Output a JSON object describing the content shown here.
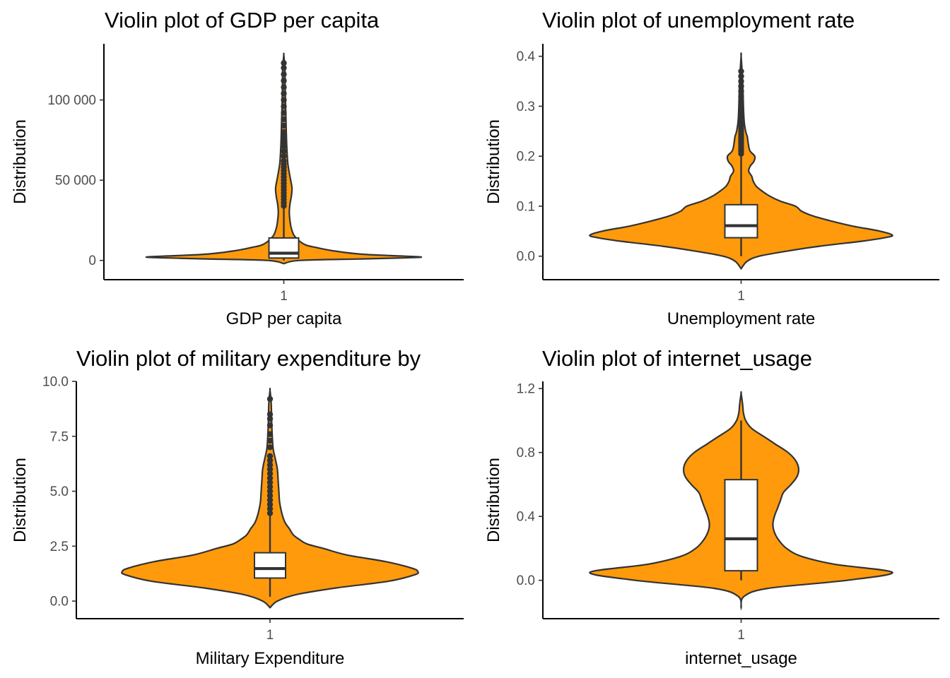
{
  "chart_data": [
    {
      "type": "violin",
      "title": "Violin plot of GDP per capita",
      "xlabel": "GDP per capita",
      "ylabel": "Distribution",
      "categories": [
        "1"
      ],
      "ylim": [
        -12000,
        135000
      ],
      "yticks": [
        0,
        50000,
        100000
      ],
      "ytick_labels": [
        "0",
        "50 000",
        "100 000"
      ],
      "box": {
        "q1": 1500,
        "median": 4500,
        "q3": 14000,
        "whisker_low": 0,
        "whisker_high": 33000
      },
      "density": {
        "y": [
          -2000,
          0,
          1000,
          2000,
          3000,
          4000,
          6000,
          8000,
          10000,
          15000,
          20000,
          25000,
          30000,
          35000,
          40000,
          45000,
          50000,
          60000,
          70000,
          80000,
          90000,
          100000,
          110000,
          120000,
          128000
        ],
        "width": [
          0,
          0.12,
          0.6,
          1.0,
          0.78,
          0.55,
          0.36,
          0.24,
          0.15,
          0.08,
          0.055,
          0.045,
          0.04,
          0.045,
          0.055,
          0.06,
          0.05,
          0.03,
          0.022,
          0.018,
          0.015,
          0.012,
          0.01,
          0.008,
          0
        ]
      },
      "outliers": [
        34000,
        36000,
        38000,
        40000,
        42000,
        44000,
        46000,
        48000,
        50000,
        52000,
        54000,
        56000,
        58000,
        60000,
        62000,
        65000,
        68000,
        71000,
        74000,
        77000,
        80000,
        84000,
        88000,
        92000,
        96000,
        100000,
        104000,
        108000,
        112000,
        116000,
        120000,
        123000
      ]
    },
    {
      "type": "violin",
      "title": "Violin plot of unemployment rate",
      "xlabel": "Unemployment rate",
      "ylabel": "Distribution",
      "categories": [
        "1"
      ],
      "ylim": [
        -0.047,
        0.425
      ],
      "yticks": [
        0.0,
        0.1,
        0.2,
        0.3,
        0.4
      ],
      "ytick_labels": [
        "0.0",
        "0.1",
        "0.2",
        "0.3",
        "0.4"
      ],
      "box": {
        "q1": 0.037,
        "median": 0.061,
        "q3": 0.103,
        "whisker_low": 0.0,
        "whisker_high": 0.2
      },
      "density": {
        "y": [
          -0.025,
          -0.01,
          0.0,
          0.01,
          0.02,
          0.03,
          0.037,
          0.042,
          0.05,
          0.06,
          0.07,
          0.08,
          0.09,
          0.1,
          0.11,
          0.12,
          0.13,
          0.14,
          0.15,
          0.16,
          0.17,
          0.18,
          0.19,
          0.2,
          0.21,
          0.22,
          0.23,
          0.24,
          0.25,
          0.27,
          0.3,
          0.35,
          0.4
        ],
        "width": [
          0,
          0.04,
          0.12,
          0.3,
          0.52,
          0.8,
          0.95,
          1.0,
          0.92,
          0.74,
          0.6,
          0.48,
          0.4,
          0.36,
          0.26,
          0.19,
          0.14,
          0.1,
          0.08,
          0.07,
          0.05,
          0.06,
          0.085,
          0.09,
          0.06,
          0.05,
          0.045,
          0.04,
          0.03,
          0.02,
          0.015,
          0.01,
          0
        ]
      },
      "outliers": [
        0.205,
        0.21,
        0.215,
        0.22,
        0.225,
        0.23,
        0.235,
        0.24,
        0.245,
        0.25,
        0.255,
        0.26,
        0.265,
        0.27,
        0.275,
        0.28,
        0.29,
        0.3,
        0.31,
        0.32,
        0.33,
        0.34,
        0.35,
        0.36,
        0.37
      ]
    },
    {
      "type": "violin",
      "title": "Violin plot of military expenditure by",
      "xlabel": "Military Expenditure",
      "ylabel": "Distribution",
      "categories": [
        "1"
      ],
      "ylim": [
        -0.8,
        10.0
      ],
      "yticks": [
        0.0,
        2.5,
        5.0,
        7.5,
        10.0
      ],
      "ytick_labels": [
        "0.0",
        "2.5",
        "5.0",
        "7.5",
        "10.0"
      ],
      "box": {
        "q1": 1.05,
        "median": 1.48,
        "q3": 2.2,
        "whisker_low": 0.2,
        "whisker_high": 3.9
      },
      "density": {
        "y": [
          -0.3,
          0.0,
          0.3,
          0.6,
          0.9,
          1.2,
          1.35,
          1.5,
          1.8,
          2.1,
          2.4,
          2.6,
          2.8,
          3.0,
          3.3,
          3.6,
          4.0,
          4.5,
          5.0,
          5.5,
          6.0,
          6.5,
          7.0,
          8.0,
          9.0,
          9.6
        ],
        "width": [
          0,
          0.05,
          0.18,
          0.45,
          0.8,
          0.98,
          1.0,
          0.96,
          0.78,
          0.52,
          0.36,
          0.25,
          0.2,
          0.16,
          0.13,
          0.1,
          0.08,
          0.065,
          0.06,
          0.055,
          0.05,
          0.035,
          0.02,
          0.012,
          0.008,
          0
        ]
      },
      "outliers": [
        4.0,
        4.2,
        4.4,
        4.6,
        4.8,
        5.0,
        5.2,
        5.4,
        5.6,
        5.8,
        6.0,
        6.2,
        6.4,
        6.6,
        7.0,
        7.3,
        7.6,
        8.0,
        8.3,
        8.5,
        9.2
      ]
    },
    {
      "type": "violin",
      "title": "Violin plot of internet_usage",
      "xlabel": "internet_usage",
      "ylabel": "Distribution",
      "categories": [
        "1"
      ],
      "ylim": [
        -0.24,
        1.245
      ],
      "yticks": [
        0.0,
        0.4,
        0.8,
        1.2
      ],
      "ytick_labels": [
        "0.0",
        "0.4",
        "0.8",
        "1.2"
      ],
      "box": {
        "q1": 0.06,
        "median": 0.26,
        "q3": 0.63,
        "whisker_low": 0.0,
        "whisker_high": 1.0
      },
      "density": {
        "y": [
          -0.17,
          -0.1,
          -0.05,
          0.0,
          0.05,
          0.1,
          0.15,
          0.2,
          0.25,
          0.3,
          0.35,
          0.4,
          0.45,
          0.5,
          0.55,
          0.6,
          0.65,
          0.7,
          0.75,
          0.8,
          0.85,
          0.9,
          0.95,
          1.0,
          1.05,
          1.1,
          1.17
        ],
        "width": [
          0,
          0.02,
          0.18,
          0.7,
          1.0,
          0.62,
          0.4,
          0.3,
          0.25,
          0.22,
          0.21,
          0.22,
          0.24,
          0.26,
          0.28,
          0.33,
          0.37,
          0.38,
          0.36,
          0.31,
          0.23,
          0.15,
          0.07,
          0.03,
          0.015,
          0.01,
          0
        ]
      },
      "outliers": []
    }
  ]
}
